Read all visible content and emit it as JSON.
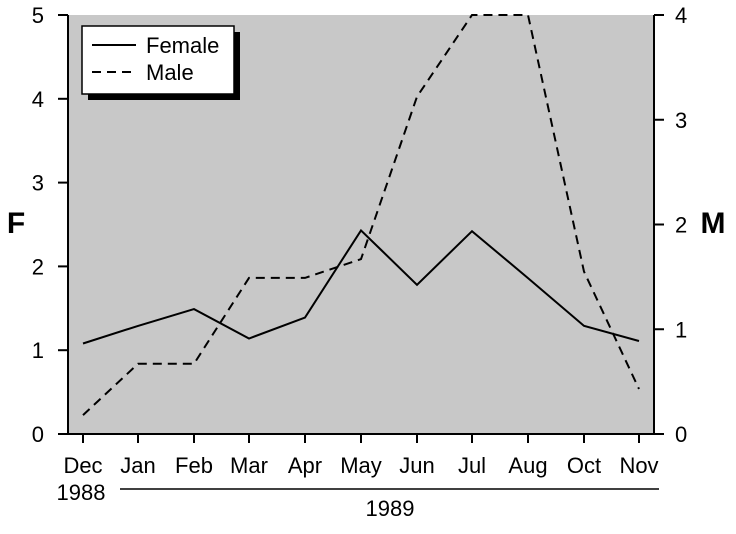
{
  "chart_data": {
    "type": "line",
    "categories": [
      "Dec",
      "Jan",
      "Feb",
      "Mar",
      "Apr",
      "May",
      "Jun",
      "Jul",
      "Aug",
      "Oct",
      "Nov"
    ],
    "x_sublabels": [
      {
        "category": "Dec",
        "label": "1988"
      }
    ],
    "x_group_label": "1989",
    "left_axis": {
      "label": "F",
      "ylim": [
        0,
        5
      ],
      "ticks": [
        0,
        1,
        2,
        3,
        4,
        5
      ]
    },
    "right_axis": {
      "label": "M",
      "ylim": [
        0,
        4
      ],
      "ticks": [
        0,
        1,
        2,
        3,
        4
      ]
    },
    "series": [
      {
        "name": "Female",
        "axis": "left",
        "line_style": "solid",
        "values": [
          1.08,
          1.29,
          1.49,
          1.14,
          1.39,
          2.43,
          1.78,
          2.42,
          1.86,
          1.29,
          1.11
        ]
      },
      {
        "name": "Male",
        "axis": "right",
        "line_style": "dashed",
        "values": [
          0.18,
          0.67,
          0.67,
          1.49,
          1.49,
          1.67,
          3.22,
          4.0,
          4.0,
          1.55,
          0.43
        ]
      }
    ],
    "legend": {
      "position": "top-left"
    },
    "plot_background": "#c8c8c8",
    "line_color": "#000000",
    "grid": false
  }
}
